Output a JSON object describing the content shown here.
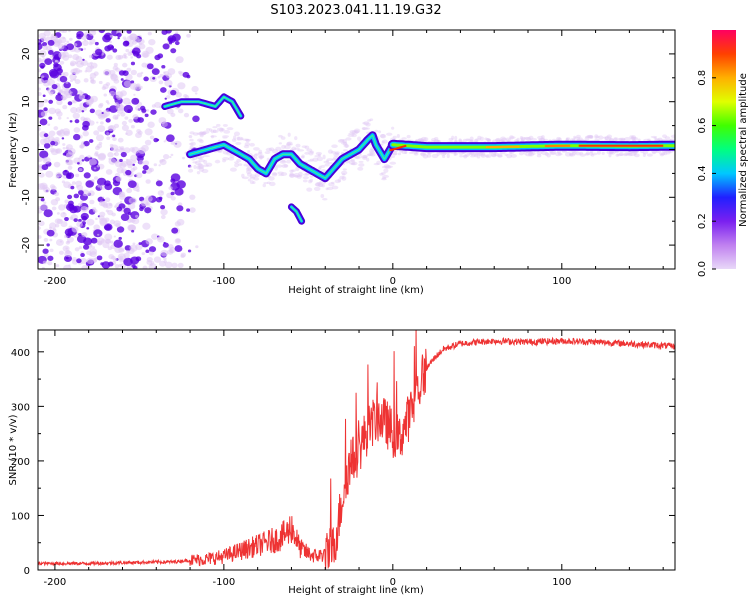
{
  "figure_title": "S103.2023.041.11.19.G32",
  "colors": {
    "spectrogram_low": "#e0c8f4",
    "spectrogram_mid": "#5a00e0",
    "trace": "#ee3333",
    "colorbar_stops": [
      "#e8d8f8",
      "#c080f0",
      "#7a20f0",
      "#2020ff",
      "#00c8ff",
      "#00ff80",
      "#40ff00",
      "#e0ff00",
      "#ffb000",
      "#ff4000",
      "#ff0060"
    ]
  },
  "chart_data": [
    {
      "type": "heatmap",
      "title": "",
      "xlabel": "Height of straight line (km)",
      "ylabel": "Frequency (Hz)",
      "xlim": [
        -210,
        167
      ],
      "ylim": [
        -25,
        25
      ],
      "xticks": [
        -200,
        -100,
        0,
        100
      ],
      "yticks": [
        -20,
        -10,
        0,
        10,
        20
      ],
      "colorbar": {
        "label": "Normalized spectral amplitude",
        "range": [
          0,
          1
        ],
        "ticks": [
          0.0,
          0.2,
          0.4,
          0.6,
          0.8
        ]
      },
      "series": [
        {
          "name": "dominant frequency track",
          "x": [
            -120,
            -110,
            -100,
            -95,
            -90,
            -85,
            -80,
            -75,
            -70,
            -65,
            -60,
            -55,
            -50,
            -45,
            -40,
            -35,
            -30,
            -25,
            -20,
            -15,
            -12,
            -10,
            -5,
            0,
            20,
            60,
            100,
            140,
            167
          ],
          "y": [
            -1,
            0,
            1,
            0,
            -1,
            -2,
            -4,
            -5,
            -2,
            -1,
            -1,
            -3,
            -4,
            -5,
            -6,
            -4,
            -2,
            -1,
            0,
            2,
            3,
            1,
            -2,
            1,
            0.5,
            0.5,
            0.8,
            0.7,
            0.8
          ]
        },
        {
          "name": "upper branch",
          "x": [
            -135,
            -125,
            -115,
            -105,
            -100,
            -95,
            -90
          ],
          "y": [
            9,
            10,
            10,
            9,
            11,
            10,
            7
          ]
        },
        {
          "name": "lower branch",
          "x": [
            -60,
            -57,
            -54
          ],
          "y": [
            -12,
            -13,
            -15
          ]
        }
      ]
    },
    {
      "type": "line",
      "title": "",
      "xlabel": "Height of straight line (km)",
      "ylabel": "SNR (10 * v/v)",
      "xlim": [
        -210,
        167
      ],
      "ylim": [
        0,
        440
      ],
      "xticks": [
        -200,
        -100,
        0,
        100
      ],
      "yticks": [
        0,
        100,
        200,
        300,
        400
      ],
      "series": [
        {
          "name": "SNR",
          "x": [
            -210,
            -180,
            -150,
            -130,
            -120,
            -110,
            -100,
            -90,
            -85,
            -80,
            -75,
            -70,
            -66,
            -62,
            -60,
            -55,
            -50,
            -45,
            -40,
            -35,
            -32,
            -28,
            -24,
            -20,
            -16,
            -12,
            -8,
            -4,
            0,
            4,
            8,
            12,
            16,
            20,
            25,
            30,
            40,
            50,
            60,
            80,
            100,
            120,
            140,
            167
          ],
          "y": [
            12,
            12,
            14,
            15,
            18,
            20,
            25,
            35,
            40,
            45,
            50,
            55,
            60,
            70,
            80,
            40,
            30,
            25,
            30,
            40,
            90,
            170,
            200,
            220,
            250,
            270,
            280,
            270,
            250,
            240,
            270,
            300,
            340,
            370,
            390,
            405,
            415,
            418,
            420,
            418,
            420,
            418,
            415,
            410
          ]
        }
      ]
    }
  ]
}
